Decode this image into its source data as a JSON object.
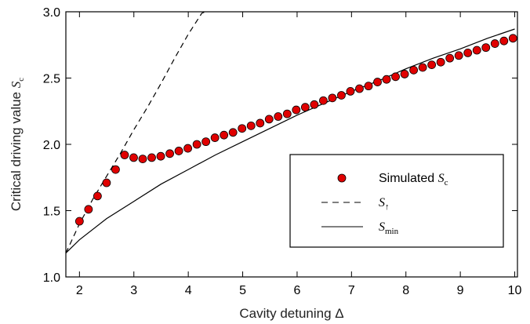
{
  "chart_data": {
    "type": "scatter",
    "title": "",
    "xlabel": "Cavity detuning Δ",
    "ylabel_text": "Critical driving value ",
    "ylabel_symbol": "S",
    "ylabel_subscript": "c",
    "xlim": [
      1.75,
      10.05
    ],
    "ylim": [
      1.0,
      3.0
    ],
    "xticks": [
      "2",
      "3",
      "4",
      "5",
      "6",
      "7",
      "8",
      "9",
      "10"
    ],
    "yticks": [
      "1.0",
      "1.5",
      "2.0",
      "2.5",
      "3.0"
    ],
    "grid": false,
    "legend_position": "lower-right",
    "colors": {
      "marker_fill": "#e00000",
      "marker_edge": "#000000",
      "lines": "#000000"
    },
    "series": [
      {
        "name": "Simulated S_c",
        "legend_text": "Simulated ",
        "legend_symbol": "S",
        "legend_subscript": "c",
        "style": "red-circles",
        "x": [
          2.0,
          2.166,
          2.332,
          2.498,
          2.664,
          2.83,
          2.996,
          3.162,
          3.328,
          3.494,
          3.66,
          3.826,
          3.992,
          4.158,
          4.324,
          4.49,
          4.656,
          4.822,
          4.988,
          5.154,
          5.32,
          5.486,
          5.652,
          5.818,
          5.984,
          6.15,
          6.316,
          6.482,
          6.648,
          6.814,
          6.98,
          7.146,
          7.312,
          7.478,
          7.644,
          7.81,
          7.976,
          8.142,
          8.308,
          8.474,
          8.64,
          8.806,
          8.972,
          9.138,
          9.304,
          9.47,
          9.636,
          9.802,
          9.968
        ],
        "y": [
          1.42,
          1.51,
          1.61,
          1.71,
          1.81,
          1.92,
          1.9,
          1.89,
          1.9,
          1.91,
          1.93,
          1.95,
          1.97,
          2.0,
          2.02,
          2.05,
          2.07,
          2.09,
          2.12,
          2.14,
          2.16,
          2.19,
          2.21,
          2.23,
          2.26,
          2.28,
          2.3,
          2.33,
          2.35,
          2.37,
          2.4,
          2.42,
          2.44,
          2.47,
          2.49,
          2.51,
          2.53,
          2.56,
          2.58,
          2.6,
          2.62,
          2.65,
          2.67,
          2.69,
          2.71,
          2.73,
          2.76,
          2.78,
          2.8
        ]
      },
      {
        "name": "S_↑",
        "legend_text": "",
        "legend_symbol": "S",
        "legend_subscript": "↑",
        "style": "dashed",
        "x": [
          1.75,
          2.0,
          2.25,
          2.5,
          2.75,
          3.0,
          3.25,
          3.5,
          3.75,
          4.0,
          4.25,
          4.32
        ],
        "y": [
          1.18,
          1.4,
          1.59,
          1.76,
          1.93,
          2.11,
          2.28,
          2.46,
          2.65,
          2.83,
          2.99,
          3.0
        ]
      },
      {
        "name": "S_min",
        "legend_text": "",
        "legend_symbol": "S",
        "legend_subscript": "min",
        "style": "solid",
        "x": [
          1.75,
          2.0,
          2.5,
          3.0,
          3.5,
          4.0,
          4.5,
          5.0,
          5.5,
          6.0,
          6.5,
          7.0,
          7.5,
          8.0,
          8.5,
          9.0,
          9.5,
          10.0
        ],
        "y": [
          1.18,
          1.28,
          1.44,
          1.57,
          1.7,
          1.81,
          1.92,
          2.02,
          2.12,
          2.22,
          2.31,
          2.4,
          2.48,
          2.57,
          2.65,
          2.72,
          2.8,
          2.87
        ]
      }
    ]
  }
}
